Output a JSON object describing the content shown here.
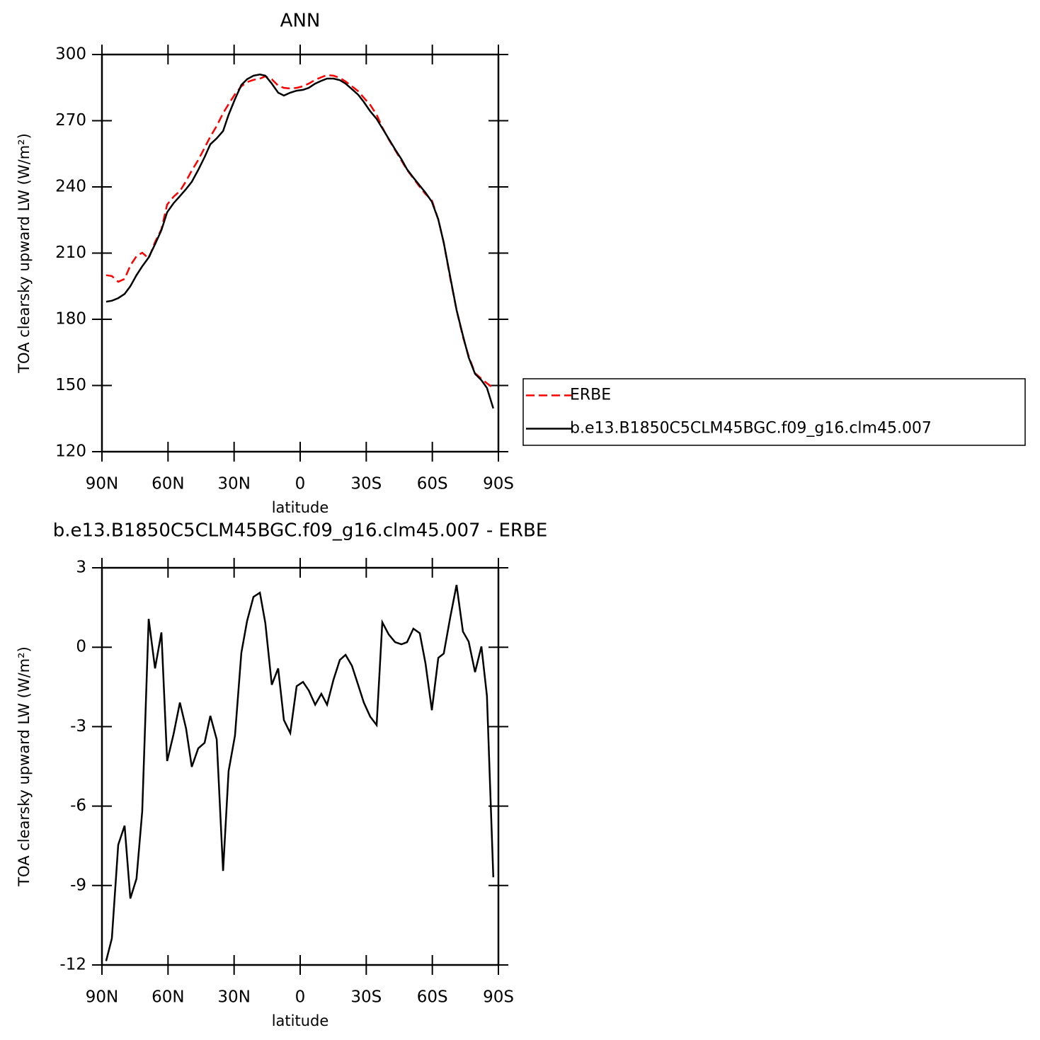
{
  "chart_data": [
    {
      "type": "line",
      "title": "ANN",
      "x_label": "latitude",
      "y_label": "TOA clearsky upward LW (W/m²)",
      "x": [
        88.1,
        85.5,
        82.6,
        79.7,
        77.1,
        74.3,
        71.7,
        68.8,
        65.9,
        63.0,
        60.4,
        57.5,
        54.6,
        51.8,
        49.2,
        46.3,
        43.4,
        40.8,
        37.9,
        35.0,
        32.5,
        29.6,
        26.7,
        24.1,
        21.2,
        18.3,
        15.8,
        12.9,
        10.0,
        7.4,
        4.5,
        1.6,
        -1.3,
        -3.9,
        -6.8,
        -9.6,
        -12.2,
        -15.1,
        -18.0,
        -20.6,
        -23.5,
        -26.4,
        -28.9,
        -31.8,
        -34.7,
        -37.3,
        -40.2,
        -43.1,
        -46.0,
        -48.5,
        -51.4,
        -54.3,
        -56.9,
        -59.8,
        -62.7,
        -65.2,
        -68.1,
        -71.0,
        -73.9,
        -76.5,
        -79.4,
        -82.3,
        -84.8,
        -87.7
      ],
      "series": [
        {
          "name": "ERBE",
          "color": "#ff0000",
          "style": "dashed",
          "values": [
            200,
            199.6,
            197,
            198.3,
            204.4,
            208.6,
            210.2,
            207.6,
            215,
            220.8,
            232,
            235.5,
            238.1,
            242.6,
            247.4,
            252.2,
            257.7,
            262.8,
            267.6,
            273.4,
            277.5,
            282,
            285.6,
            287.5,
            288.5,
            289.1,
            290.1,
            288.8,
            285.9,
            284.9,
            284.6,
            284.9,
            285.6,
            286.8,
            288.5,
            289.7,
            290.7,
            290.4,
            289.4,
            287.8,
            285.6,
            283.3,
            280.4,
            277.2,
            272.7,
            267,
            261.5,
            256.7,
            251.9,
            247.7,
            243.9,
            240,
            236.8,
            233.9,
            225.2,
            214.7,
            198.7,
            184.2,
            172,
            163.3,
            155.6,
            153,
            151,
            148.9
          ]
        },
        {
          "name": "b.e13.B1850C5CLM45BGC.f09_g16.clm45.007",
          "color": "#000000",
          "style": "solid",
          "values": [
            188,
            188.4,
            189.6,
            191.5,
            195,
            200,
            204,
            208,
            214,
            220.4,
            228.5,
            232.6,
            235.8,
            239,
            242.3,
            247.7,
            253.5,
            259.3,
            262,
            265.3,
            272.7,
            279.8,
            286.2,
            288.8,
            290.4,
            291,
            290.4,
            286.8,
            282.7,
            281.4,
            282.7,
            283.6,
            284,
            284.9,
            286.8,
            288.1,
            289.1,
            289.1,
            288.4,
            286.8,
            284.3,
            281.7,
            278.5,
            274.3,
            270.8,
            266.6,
            261.8,
            257,
            252.5,
            248,
            244.2,
            240.6,
            237.4,
            233.3,
            225.2,
            214.7,
            199.3,
            184.2,
            172.6,
            162.7,
            155.3,
            152.4,
            148.9,
            139.6
          ]
        }
      ],
      "xlim": [
        90,
        -90
      ],
      "xticks": [
        {
          "value": 90,
          "label": "90N"
        },
        {
          "value": 60,
          "label": "60N"
        },
        {
          "value": 30,
          "label": "30N"
        },
        0,
        {
          "value": -30,
          "label": "30S"
        },
        {
          "value": -60,
          "label": "60S"
        },
        {
          "value": -90,
          "label": "90S"
        }
      ],
      "ylim": [
        120,
        300
      ],
      "yticks": [
        120,
        150,
        180,
        210,
        240,
        270,
        300
      ],
      "legend": "right"
    },
    {
      "type": "line",
      "title": "b.e13.B1850C5CLM45BGC.f09_g16.clm45.007 - ERBE",
      "x_label": "latitude",
      "y_label": "TOA clearsky upward LW (W/m²)",
      "x": [
        88.1,
        85.5,
        82.6,
        79.7,
        77.1,
        74.3,
        71.7,
        68.8,
        65.9,
        63.0,
        60.4,
        57.5,
        54.6,
        51.8,
        49.2,
        46.3,
        43.4,
        40.8,
        37.9,
        35.0,
        32.5,
        29.6,
        26.7,
        24.1,
        21.2,
        18.3,
        15.8,
        12.9,
        10.0,
        7.4,
        4.5,
        1.6,
        -1.3,
        -3.9,
        -6.8,
        -9.6,
        -12.2,
        -15.1,
        -18.0,
        -20.6,
        -23.5,
        -26.4,
        -28.9,
        -31.8,
        -34.7,
        -37.3,
        -40.2,
        -43.1,
        -46.0,
        -48.5,
        -51.4,
        -54.3,
        -56.9,
        -59.8,
        -62.7,
        -65.2,
        -68.1,
        -71.0,
        -73.9,
        -76.5,
        -79.4,
        -82.3,
        -84.8,
        -87.7
      ],
      "series": [
        {
          "color": "#000000",
          "style": "solid",
          "values": [
            -11.85,
            -11.0,
            -7.46,
            -6.74,
            -9.49,
            -8.74,
            -6.2,
            1.07,
            -0.8,
            0.56,
            -4.3,
            -3.29,
            -2.09,
            -3.07,
            -4.52,
            -3.82,
            -3.61,
            -2.59,
            -3.48,
            -8.45,
            -4.68,
            -3.34,
            -0.21,
            0.99,
            1.9,
            2.06,
            0.91,
            -1.42,
            -0.8,
            -2.75,
            -3.24,
            -1.47,
            -1.31,
            -1.63,
            -2.17,
            -1.76,
            -2.17,
            -1.23,
            -0.48,
            -0.29,
            -0.7,
            -1.44,
            -2.09,
            -2.62,
            -2.94,
            0.94,
            0.48,
            0.19,
            0.11,
            0.19,
            0.7,
            0.53,
            -0.61,
            -2.38,
            -0.4,
            -0.24,
            1.12,
            2.35,
            0.59,
            0.21,
            -0.94,
            0.03,
            -1.84,
            -8.69
          ]
        }
      ],
      "xlim": [
        90,
        -90
      ],
      "xticks": [
        {
          "value": 90,
          "label": "90N"
        },
        {
          "value": 60,
          "label": "60N"
        },
        {
          "value": 30,
          "label": "30N"
        },
        0,
        {
          "value": -30,
          "label": "30S"
        },
        {
          "value": -60,
          "label": "60S"
        },
        {
          "value": -90,
          "label": "90S"
        }
      ],
      "ylim": [
        -12,
        3
      ],
      "yticks": [
        -12,
        -9,
        -6,
        -3,
        0,
        3
      ]
    }
  ]
}
